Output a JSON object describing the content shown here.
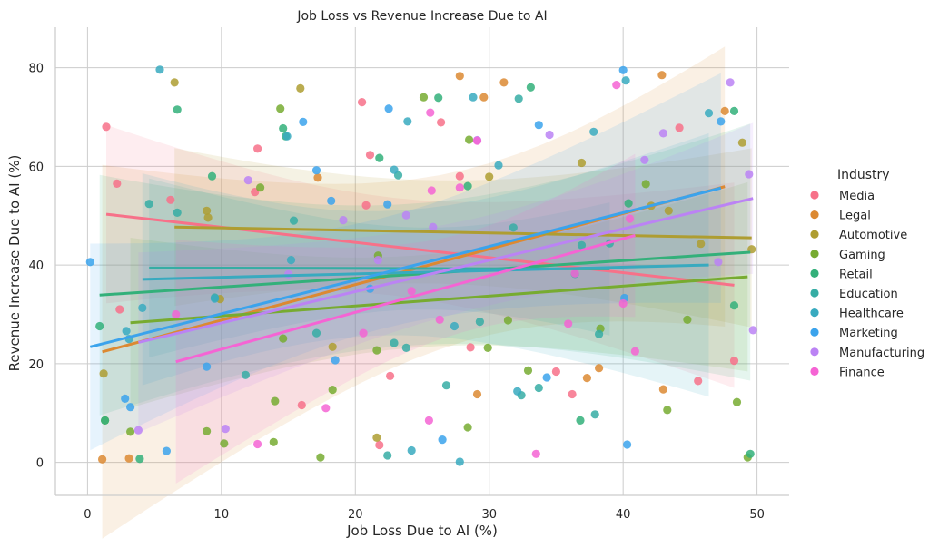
{
  "chart_data": {
    "type": "scatter",
    "title": "Job Loss vs Revenue Increase Due to AI",
    "xlabel": "Job Loss Due to AI (%)",
    "ylabel": "Revenue Increase Due to AI (%)",
    "xlim": [
      -2.4,
      52.4
    ],
    "ylim": [
      -6.7,
      88.2
    ],
    "xticks": [
      0,
      10,
      20,
      30,
      40,
      50
    ],
    "yticks": [
      0,
      20,
      40,
      60,
      80
    ],
    "grid": true,
    "legend": {
      "title": "Industry",
      "position": "right"
    },
    "series": [
      {
        "name": "Media",
        "color": "#f77189",
        "points": [
          [
            1.4,
            68.0
          ],
          [
            2.2,
            56.5
          ],
          [
            2.4,
            31.0
          ],
          [
            6.2,
            53.2
          ],
          [
            12.5,
            54.8
          ],
          [
            12.7,
            63.6
          ],
          [
            16.0,
            11.6
          ],
          [
            20.5,
            73.0
          ],
          [
            20.8,
            52.1
          ],
          [
            21.1,
            62.3
          ],
          [
            21.8,
            3.5
          ],
          [
            22.6,
            17.5
          ],
          [
            26.4,
            68.9
          ],
          [
            27.8,
            58.0
          ],
          [
            28.6,
            23.3
          ],
          [
            35.0,
            18.4
          ],
          [
            36.2,
            13.8
          ],
          [
            44.2,
            67.8
          ],
          [
            45.6,
            16.5
          ],
          [
            48.3,
            20.6
          ]
        ],
        "fit": [
          [
            1.4,
            50.3
          ],
          [
            48.3,
            35.9
          ]
        ]
      },
      {
        "name": "Legal",
        "color": "#dc8932",
        "points": [
          [
            1.1,
            0.6
          ],
          [
            3.1,
            0.8
          ],
          [
            17.2,
            57.7
          ],
          [
            27.8,
            78.3
          ],
          [
            29.1,
            13.8
          ],
          [
            29.6,
            74.0
          ],
          [
            31.1,
            77.0
          ],
          [
            37.3,
            17.1
          ],
          [
            38.2,
            19.1
          ],
          [
            42.9,
            78.5
          ],
          [
            43.0,
            14.8
          ],
          [
            47.6,
            71.2
          ]
        ],
        "fit": [
          [
            1.1,
            22.4
          ],
          [
            47.6,
            55.9
          ]
        ]
      },
      {
        "name": "Automotive",
        "color": "#ae9d31",
        "points": [
          [
            1.2,
            18.0
          ],
          [
            6.5,
            77.0
          ],
          [
            8.9,
            51.0
          ],
          [
            9.0,
            49.6
          ],
          [
            9.9,
            33.1
          ],
          [
            15.9,
            75.8
          ],
          [
            18.3,
            23.4
          ],
          [
            21.6,
            5.0
          ],
          [
            30.0,
            57.9
          ],
          [
            36.9,
            60.7
          ],
          [
            42.1,
            52.0
          ],
          [
            43.4,
            51.0
          ],
          [
            45.8,
            44.3
          ],
          [
            48.9,
            64.8
          ],
          [
            49.6,
            43.2
          ]
        ],
        "fit": [
          [
            6.5,
            47.7
          ],
          [
            49.6,
            45.5
          ]
        ]
      },
      {
        "name": "Gaming",
        "color": "#77ab31",
        "points": [
          [
            1.3,
            8.5
          ],
          [
            3.2,
            6.2
          ],
          [
            8.9,
            6.3
          ],
          [
            10.2,
            3.8
          ],
          [
            12.9,
            55.7
          ],
          [
            13.9,
            4.1
          ],
          [
            14.0,
            12.4
          ],
          [
            14.4,
            71.7
          ],
          [
            14.6,
            25.1
          ],
          [
            17.4,
            1.0
          ],
          [
            18.3,
            14.7
          ],
          [
            21.6,
            22.7
          ],
          [
            21.7,
            41.9
          ],
          [
            25.1,
            74.0
          ],
          [
            28.4,
            7.1
          ],
          [
            28.5,
            65.4
          ],
          [
            29.9,
            23.2
          ],
          [
            31.4,
            28.8
          ],
          [
            32.9,
            18.6
          ],
          [
            38.3,
            27.1
          ],
          [
            41.7,
            56.4
          ],
          [
            43.3,
            10.6
          ],
          [
            44.8,
            28.9
          ],
          [
            48.5,
            12.2
          ],
          [
            49.3,
            1.0
          ]
        ],
        "fit": [
          [
            3.2,
            28.3
          ],
          [
            49.3,
            37.6
          ]
        ]
      },
      {
        "name": "Retail",
        "color": "#33b07a",
        "points": [
          [
            0.9,
            27.6
          ],
          [
            1.3,
            8.5
          ],
          [
            3.9,
            0.7
          ],
          [
            6.7,
            71.5
          ],
          [
            9.3,
            58.0
          ],
          [
            14.6,
            67.7
          ],
          [
            14.8,
            66.1
          ],
          [
            21.8,
            61.7
          ],
          [
            26.2,
            73.9
          ],
          [
            28.4,
            56.0
          ],
          [
            33.1,
            76.0
          ],
          [
            36.8,
            8.5
          ],
          [
            40.4,
            52.5
          ],
          [
            48.3,
            71.2
          ],
          [
            48.3,
            31.8
          ],
          [
            49.5,
            1.7
          ]
        ],
        "fit": [
          [
            0.9,
            33.9
          ],
          [
            49.5,
            42.6
          ]
        ]
      },
      {
        "name": "Education",
        "color": "#36ada4",
        "points": [
          [
            4.6,
            52.4
          ],
          [
            6.7,
            50.6
          ],
          [
            9.5,
            33.4
          ],
          [
            11.8,
            17.7
          ],
          [
            15.4,
            49.0
          ],
          [
            17.1,
            26.2
          ],
          [
            22.4,
            1.4
          ],
          [
            22.9,
            24.2
          ],
          [
            23.2,
            58.2
          ],
          [
            23.8,
            23.2
          ],
          [
            26.8,
            15.6
          ],
          [
            29.3,
            28.5
          ],
          [
            31.8,
            47.6
          ],
          [
            32.4,
            13.6
          ],
          [
            32.2,
            73.7
          ],
          [
            33.7,
            15.1
          ],
          [
            36.4,
            38.2
          ],
          [
            36.9,
            44.0
          ],
          [
            37.9,
            9.7
          ],
          [
            38.2,
            26.0
          ],
          [
            39.0,
            44.4
          ]
        ],
        "fit": [
          [
            4.6,
            39.4
          ],
          [
            39.0,
            39.2
          ]
        ]
      },
      {
        "name": "Healthcare",
        "color": "#38aabf",
        "points": [
          [
            2.9,
            26.6
          ],
          [
            3.1,
            25.0
          ],
          [
            4.1,
            31.3
          ],
          [
            5.4,
            79.6
          ],
          [
            9.5,
            33.2
          ],
          [
            14.9,
            66.1
          ],
          [
            15.2,
            41.0
          ],
          [
            22.9,
            59.3
          ],
          [
            23.9,
            69.1
          ],
          [
            24.2,
            2.4
          ],
          [
            27.4,
            27.6
          ],
          [
            27.8,
            0.1
          ],
          [
            28.8,
            74.0
          ],
          [
            30.7,
            60.2
          ],
          [
            32.1,
            14.4
          ],
          [
            37.8,
            67.0
          ],
          [
            40.2,
            77.4
          ],
          [
            46.4,
            70.8
          ]
        ],
        "fit": [
          [
            4.1,
            37.1
          ],
          [
            46.4,
            40.0
          ]
        ]
      },
      {
        "name": "Marketing",
        "color": "#3ba3ec",
        "points": [
          [
            0.2,
            40.6
          ],
          [
            2.8,
            12.9
          ],
          [
            3.2,
            11.2
          ],
          [
            5.9,
            2.3
          ],
          [
            8.9,
            19.4
          ],
          [
            16.1,
            69.0
          ],
          [
            17.1,
            59.2
          ],
          [
            18.2,
            53.0
          ],
          [
            18.5,
            20.7
          ],
          [
            21.1,
            35.2
          ],
          [
            22.4,
            52.3
          ],
          [
            22.5,
            71.7
          ],
          [
            26.5,
            4.6
          ],
          [
            33.7,
            68.4
          ],
          [
            34.3,
            17.2
          ],
          [
            40.0,
            79.5
          ],
          [
            40.1,
            33.3
          ],
          [
            40.3,
            3.6
          ],
          [
            47.3,
            69.1
          ]
        ],
        "fit": [
          [
            0.2,
            23.4
          ],
          [
            47.3,
            55.6
          ]
        ]
      },
      {
        "name": "Manufacturing",
        "color": "#bb83f4",
        "points": [
          [
            3.8,
            6.5
          ],
          [
            10.3,
            6.8
          ],
          [
            12.0,
            57.2
          ],
          [
            15.0,
            38.1
          ],
          [
            19.1,
            49.1
          ],
          [
            21.7,
            41.0
          ],
          [
            23.8,
            50.1
          ],
          [
            25.8,
            47.7
          ],
          [
            29.1,
            65.3
          ],
          [
            34.5,
            66.4
          ],
          [
            41.6,
            61.3
          ],
          [
            43.0,
            66.7
          ],
          [
            47.1,
            40.6
          ],
          [
            48.0,
            77.0
          ],
          [
            49.4,
            58.4
          ],
          [
            49.7,
            26.8
          ]
        ],
        "fit": [
          [
            3.8,
            24.3
          ],
          [
            49.7,
            53.5
          ]
        ]
      },
      {
        "name": "Finance",
        "color": "#f564d4",
        "points": [
          [
            6.6,
            30.0
          ],
          [
            12.7,
            3.7
          ],
          [
            17.8,
            11.0
          ],
          [
            20.6,
            26.2
          ],
          [
            24.2,
            34.7
          ],
          [
            25.5,
            8.5
          ],
          [
            25.6,
            70.9
          ],
          [
            25.7,
            55.1
          ],
          [
            26.3,
            28.9
          ],
          [
            27.8,
            55.7
          ],
          [
            29.1,
            65.2
          ],
          [
            33.5,
            1.7
          ],
          [
            35.9,
            28.1
          ],
          [
            36.4,
            38.3
          ],
          [
            40.0,
            32.2
          ],
          [
            40.5,
            49.4
          ],
          [
            40.9,
            22.5
          ],
          [
            39.5,
            76.5
          ]
        ],
        "fit": [
          [
            6.6,
            20.4
          ],
          [
            40.9,
            46.0
          ]
        ]
      }
    ]
  }
}
